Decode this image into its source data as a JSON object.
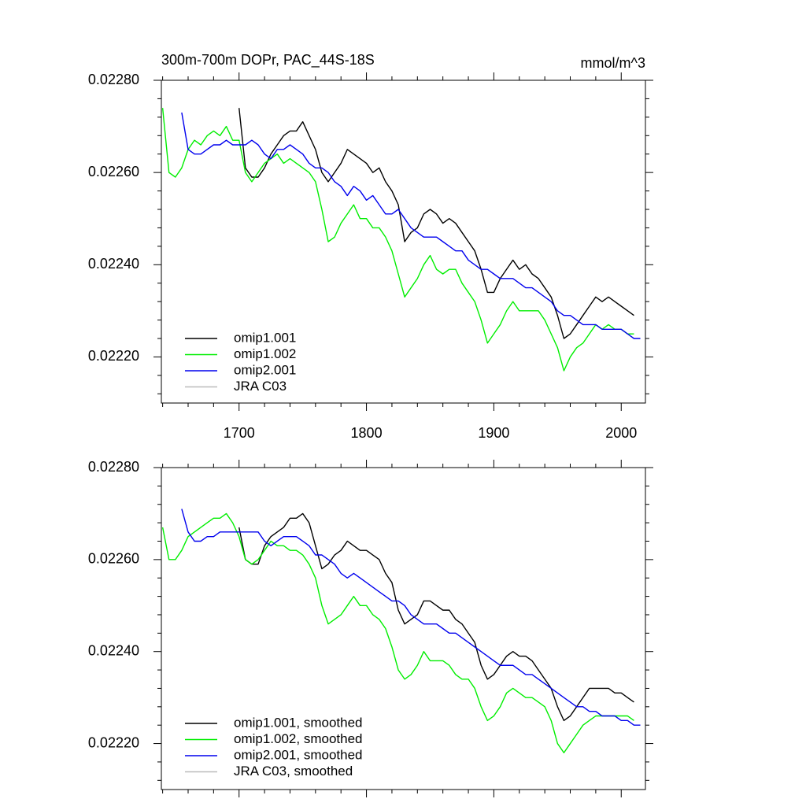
{
  "chart_data": [
    {
      "type": "line",
      "title": "300m-700m DOPr, PAC_44S-18S",
      "units": "mmol/m^3",
      "x": [
        1640,
        1645,
        1650,
        1655,
        1660,
        1665,
        1670,
        1675,
        1680,
        1685,
        1690,
        1695,
        1700,
        1705,
        1710,
        1715,
        1720,
        1725,
        1730,
        1735,
        1740,
        1745,
        1750,
        1755,
        1760,
        1765,
        1770,
        1775,
        1780,
        1785,
        1790,
        1795,
        1800,
        1805,
        1810,
        1815,
        1820,
        1825,
        1830,
        1835,
        1840,
        1845,
        1850,
        1855,
        1860,
        1865,
        1870,
        1875,
        1880,
        1885,
        1890,
        1895,
        1900,
        1905,
        1910,
        1915,
        1920,
        1925,
        1930,
        1935,
        1940,
        1945,
        1950,
        1955,
        1960,
        1965,
        1970,
        1975,
        1980,
        1985,
        1990,
        1995,
        2000,
        2005,
        2010,
        2015
      ],
      "series": [
        {
          "name": "omip1.001",
          "color": "#000000",
          "values": [
            null,
            null,
            null,
            null,
            null,
            null,
            null,
            null,
            null,
            null,
            null,
            null,
            0.02274,
            0.02261,
            0.02259,
            0.02259,
            0.02261,
            0.02264,
            0.02266,
            0.02268,
            0.02269,
            0.02269,
            0.02271,
            0.02268,
            0.02265,
            0.0226,
            0.02258,
            0.0226,
            0.02262,
            0.02265,
            0.02264,
            0.02263,
            0.02262,
            0.0226,
            0.02261,
            0.02258,
            0.02256,
            0.02253,
            0.02245,
            0.02247,
            0.02248,
            0.02251,
            0.02252,
            0.02251,
            0.02249,
            0.0225,
            0.02249,
            0.02247,
            0.02245,
            0.02243,
            0.02239,
            0.02234,
            0.02234,
            0.02237,
            0.02239,
            0.02241,
            0.02239,
            0.0224,
            0.02238,
            0.02237,
            0.02235,
            0.02233,
            0.02229,
            0.02224,
            0.02225,
            0.02227,
            0.02229,
            0.02231,
            0.02233,
            0.02232,
            0.02233,
            0.02232,
            0.02231,
            0.0223,
            0.02229,
            null
          ]
        },
        {
          "name": "omip1.002",
          "color": "#00ee00",
          "values": [
            0.02274,
            0.0226,
            0.02259,
            0.02261,
            0.02265,
            0.02267,
            0.02266,
            0.02268,
            0.02269,
            0.02268,
            0.0227,
            0.02267,
            0.02267,
            0.0226,
            0.02258,
            0.0226,
            0.02262,
            0.02263,
            0.02264,
            0.02262,
            0.02263,
            0.02262,
            0.02261,
            0.0226,
            0.02258,
            0.02252,
            0.02245,
            0.02246,
            0.02249,
            0.02251,
            0.02253,
            0.0225,
            0.0225,
            0.02248,
            0.02248,
            0.02246,
            0.02243,
            0.02238,
            0.02233,
            0.02235,
            0.02237,
            0.0224,
            0.02242,
            0.02239,
            0.02238,
            0.02239,
            0.02239,
            0.02236,
            0.02234,
            0.02232,
            0.02228,
            0.02223,
            0.02225,
            0.02227,
            0.0223,
            0.02232,
            0.0223,
            0.0223,
            0.0223,
            0.0223,
            0.02228,
            0.02225,
            0.02222,
            0.02217,
            0.0222,
            0.02222,
            0.02223,
            0.02225,
            0.02227,
            0.02226,
            0.02227,
            0.02226,
            0.02226,
            0.02225,
            0.02225,
            null
          ]
        },
        {
          "name": "omip2.001",
          "color": "#0000ee",
          "values": [
            null,
            null,
            null,
            0.02273,
            0.02265,
            0.02264,
            0.02264,
            0.02265,
            0.02266,
            0.02266,
            0.02267,
            0.02266,
            0.02266,
            0.02266,
            0.02267,
            0.02266,
            0.02264,
            0.02263,
            0.02265,
            0.02265,
            0.02266,
            0.02265,
            0.02264,
            0.02262,
            0.02261,
            0.02261,
            0.0226,
            0.02258,
            0.02257,
            0.02255,
            0.02257,
            0.02256,
            0.02254,
            0.02255,
            0.02253,
            0.02251,
            0.02251,
            0.02252,
            0.0225,
            0.02248,
            0.02247,
            0.02246,
            0.02246,
            0.02246,
            0.02245,
            0.02244,
            0.02243,
            0.02243,
            0.02241,
            0.0224,
            0.02239,
            0.02239,
            0.02238,
            0.02237,
            0.02237,
            0.02237,
            0.02236,
            0.02235,
            0.02235,
            0.02234,
            0.02233,
            0.02232,
            0.0223,
            0.02229,
            0.02229,
            0.02228,
            0.02227,
            0.02227,
            0.02227,
            0.02226,
            0.02226,
            0.02226,
            0.02226,
            0.02225,
            0.02224,
            0.02224
          ]
        },
        {
          "name": "JRA C03",
          "color": "#bbbbbb",
          "values": [
            null,
            null,
            null,
            null,
            null,
            null,
            null,
            null,
            null,
            null,
            null,
            null,
            null,
            null,
            null,
            null,
            null,
            null,
            null,
            null,
            null,
            null,
            null,
            null,
            null,
            null,
            null,
            null,
            null,
            null,
            null,
            null,
            null,
            null,
            null,
            null,
            null,
            null,
            null,
            null,
            null,
            null,
            null,
            null,
            null,
            null,
            null,
            null,
            null,
            null,
            null,
            null,
            null,
            null,
            null,
            null,
            null,
            null,
            null,
            null,
            null,
            null,
            null,
            null,
            null,
            null,
            null,
            null,
            null,
            null,
            null,
            null,
            null,
            null,
            null,
            null
          ]
        }
      ],
      "xlim": [
        1639,
        2019
      ],
      "xticks": [
        1700,
        1800,
        1900,
        2000
      ],
      "ylim": [
        0.0221,
        0.0228
      ],
      "yticks": [
        {
          "value": 0.0228,
          "label": "0.02280"
        },
        {
          "value": 0.0226,
          "label": "0.02260"
        },
        {
          "value": 0.0224,
          "label": "0.02240"
        },
        {
          "value": 0.0222,
          "label": "0.02220"
        }
      ]
    },
    {
      "type": "line",
      "x": [
        1640,
        1645,
        1650,
        1655,
        1660,
        1665,
        1670,
        1675,
        1680,
        1685,
        1690,
        1695,
        1700,
        1705,
        1710,
        1715,
        1720,
        1725,
        1730,
        1735,
        1740,
        1745,
        1750,
        1755,
        1760,
        1765,
        1770,
        1775,
        1780,
        1785,
        1790,
        1795,
        1800,
        1805,
        1810,
        1815,
        1820,
        1825,
        1830,
        1835,
        1840,
        1845,
        1850,
        1855,
        1860,
        1865,
        1870,
        1875,
        1880,
        1885,
        1890,
        1895,
        1900,
        1905,
        1910,
        1915,
        1920,
        1925,
        1930,
        1935,
        1940,
        1945,
        1950,
        1955,
        1960,
        1965,
        1970,
        1975,
        1980,
        1985,
        1990,
        1995,
        2000,
        2005,
        2010,
        2015
      ],
      "series": [
        {
          "name": "omip1.001, smoothed",
          "color": "#000000",
          "values": [
            null,
            null,
            null,
            null,
            null,
            null,
            null,
            null,
            null,
            null,
            null,
            null,
            0.02267,
            0.0226,
            0.02259,
            0.02259,
            0.02263,
            0.02265,
            0.02266,
            0.02267,
            0.02269,
            0.02269,
            0.0227,
            0.02268,
            0.02263,
            0.02258,
            0.02259,
            0.02261,
            0.02262,
            0.02264,
            0.02263,
            0.02262,
            0.02262,
            0.02261,
            0.0226,
            0.02257,
            0.02255,
            0.02249,
            0.02246,
            0.02247,
            0.02248,
            0.02251,
            0.02251,
            0.0225,
            0.02249,
            0.02249,
            0.02247,
            0.02246,
            0.02244,
            0.02242,
            0.02237,
            0.02234,
            0.02235,
            0.02237,
            0.02239,
            0.0224,
            0.02239,
            0.02239,
            0.02238,
            0.02236,
            0.02234,
            0.02232,
            0.02228,
            0.02225,
            0.02226,
            0.02228,
            0.0223,
            0.02232,
            0.02232,
            0.02232,
            0.02232,
            0.02231,
            0.02231,
            0.0223,
            0.02229,
            null
          ]
        },
        {
          "name": "omip1.002, smoothed",
          "color": "#00ee00",
          "values": [
            0.02267,
            0.0226,
            0.0226,
            0.02262,
            0.02265,
            0.02266,
            0.02267,
            0.02268,
            0.02269,
            0.02269,
            0.0227,
            0.02268,
            0.02265,
            0.0226,
            0.02259,
            0.0226,
            0.02262,
            0.02264,
            0.02263,
            0.02263,
            0.02262,
            0.02262,
            0.02261,
            0.02259,
            0.02256,
            0.0225,
            0.02246,
            0.02247,
            0.02248,
            0.0225,
            0.02252,
            0.0225,
            0.0225,
            0.02248,
            0.02247,
            0.02245,
            0.02241,
            0.02236,
            0.02234,
            0.02235,
            0.02237,
            0.0224,
            0.02238,
            0.02238,
            0.02238,
            0.02237,
            0.02235,
            0.02234,
            0.02234,
            0.02232,
            0.02228,
            0.02225,
            0.02226,
            0.02228,
            0.02231,
            0.02232,
            0.02231,
            0.0223,
            0.0223,
            0.02229,
            0.02228,
            0.02225,
            0.0222,
            0.02218,
            0.0222,
            0.02222,
            0.02224,
            0.02225,
            0.02226,
            0.02226,
            0.02226,
            0.02226,
            0.02226,
            0.02226,
            0.02225,
            null
          ]
        },
        {
          "name": "omip2.001, smoothed",
          "color": "#0000ee",
          "values": [
            null,
            null,
            null,
            0.02271,
            0.02266,
            0.02264,
            0.02264,
            0.02265,
            0.02265,
            0.02266,
            0.02266,
            0.02266,
            0.02266,
            0.02266,
            0.02266,
            0.02266,
            0.02264,
            0.02263,
            0.02264,
            0.02265,
            0.02265,
            0.02265,
            0.02264,
            0.02263,
            0.02261,
            0.02261,
            0.0226,
            0.02259,
            0.02257,
            0.02256,
            0.02257,
            0.02256,
            0.02255,
            0.02254,
            0.02253,
            0.02252,
            0.02251,
            0.02251,
            0.0225,
            0.02248,
            0.02247,
            0.02246,
            0.02246,
            0.02246,
            0.02245,
            0.02244,
            0.02244,
            0.02243,
            0.02242,
            0.02241,
            0.0224,
            0.02239,
            0.02238,
            0.02237,
            0.02237,
            0.02237,
            0.02236,
            0.02235,
            0.02235,
            0.02234,
            0.02233,
            0.02232,
            0.02231,
            0.0223,
            0.02229,
            0.02228,
            0.02228,
            0.02227,
            0.02227,
            0.02226,
            0.02226,
            0.02226,
            0.02225,
            0.02225,
            0.02224,
            0.02224
          ]
        },
        {
          "name": "JRA C03, smoothed",
          "color": "#bbbbbb",
          "values": [
            null,
            null,
            null,
            null,
            null,
            null,
            null,
            null,
            null,
            null,
            null,
            null,
            null,
            null,
            null,
            null,
            null,
            null,
            null,
            null,
            null,
            null,
            null,
            null,
            null,
            null,
            null,
            null,
            null,
            null,
            null,
            null,
            null,
            null,
            null,
            null,
            null,
            null,
            null,
            null,
            null,
            null,
            null,
            null,
            null,
            null,
            null,
            null,
            null,
            null,
            null,
            null,
            null,
            null,
            null,
            null,
            null,
            null,
            null,
            null,
            null,
            null,
            null,
            null,
            null,
            null,
            null,
            null,
            null,
            null,
            null,
            null,
            null,
            null,
            null,
            null
          ]
        }
      ],
      "xlim": [
        1639,
        2019
      ],
      "ylim": [
        0.0221,
        0.0228
      ],
      "yticks": [
        {
          "value": 0.0228,
          "label": "0.02280"
        },
        {
          "value": 0.0226,
          "label": "0.02260"
        },
        {
          "value": 0.0224,
          "label": "0.02240"
        },
        {
          "value": 0.0222,
          "label": "0.02220"
        }
      ]
    }
  ]
}
